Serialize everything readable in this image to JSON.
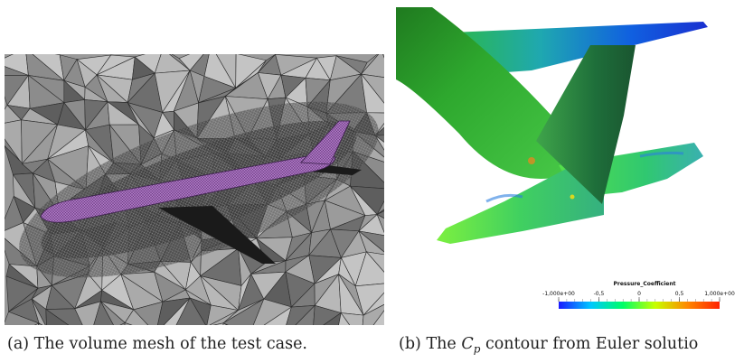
{
  "figure": {
    "panel_a": {
      "label": "(a)",
      "caption": "The volume mesh of the test case."
    },
    "panel_b": {
      "label": "(b)",
      "caption_prefix": "The ",
      "caption_symbol": "C",
      "caption_subscript": "p",
      "caption_suffix": " contour from Euler solutio",
      "colorbar": {
        "title": "Pressure_Coefficient",
        "ticks": [
          "-1,000e+00",
          "-0,5",
          "0",
          "0,5",
          "1,000e+00"
        ],
        "min": -1.0,
        "max": 1.0,
        "colors": [
          "#1a1aff",
          "#00c8ff",
          "#00ff66",
          "#c8ff00",
          "#ff8800",
          "#ff2200"
        ]
      }
    }
  }
}
